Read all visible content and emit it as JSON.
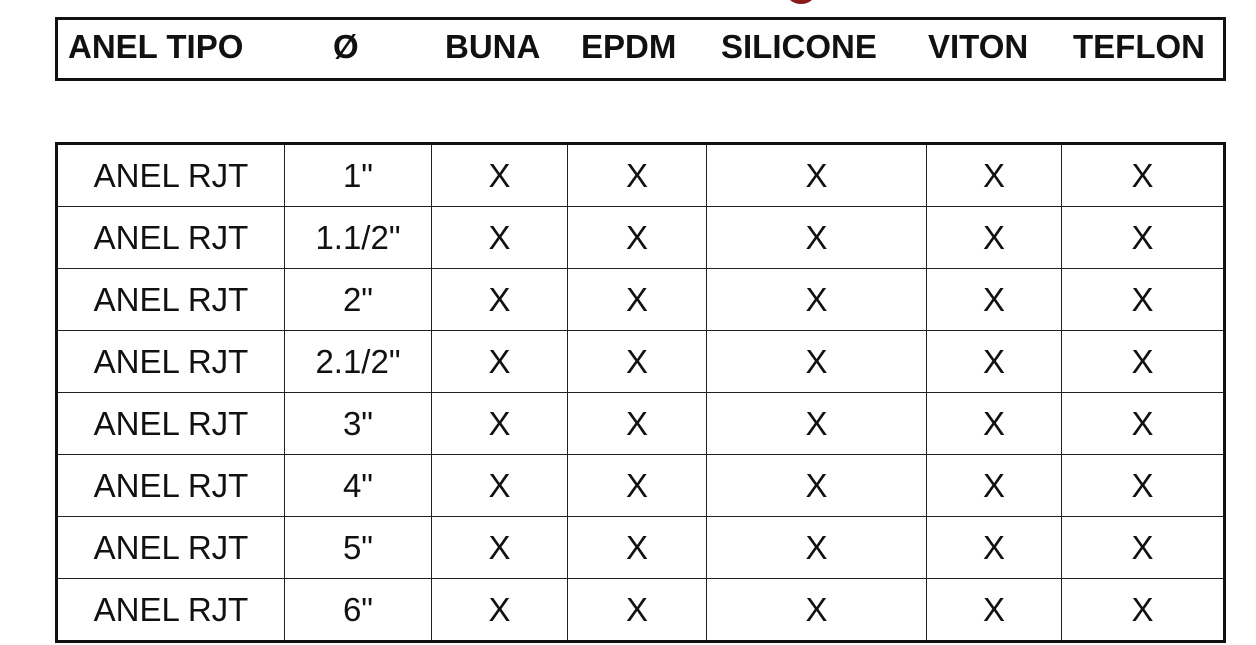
{
  "header": [
    "ANEL TIPO",
    "Ø",
    "BUNA",
    "EPDM",
    "SILICONE",
    "VITON",
    "TEFLON"
  ],
  "rows": [
    [
      "ANEL RJT",
      "1\"",
      "X",
      "X",
      "X",
      "X",
      "X"
    ],
    [
      "ANEL RJT",
      "1.1/2\"",
      "X",
      "X",
      "X",
      "X",
      "X"
    ],
    [
      "ANEL RJT",
      "2\"",
      "X",
      "X",
      "X",
      "X",
      "X"
    ],
    [
      "ANEL RJT",
      "2.1/2\"",
      "X",
      "X",
      "X",
      "X",
      "X"
    ],
    [
      "ANEL RJT",
      "3\"",
      "X",
      "X",
      "X",
      "X",
      "X"
    ],
    [
      "ANEL RJT",
      "4\"",
      "X",
      "X",
      "X",
      "X",
      "X"
    ],
    [
      "ANEL RJT",
      "5\"",
      "X",
      "X",
      "X",
      "X",
      "X"
    ],
    [
      "ANEL RJT",
      "6\"",
      "X",
      "X",
      "X",
      "X",
      "X"
    ]
  ]
}
